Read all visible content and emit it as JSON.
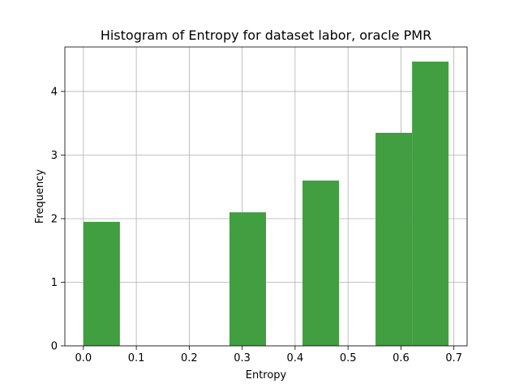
{
  "chart_data": {
    "type": "bar",
    "title": "Histogram of Entropy for dataset labor, oracle PMR",
    "xlabel": "Entropy",
    "ylabel": "Frequency",
    "xlim": [
      -0.035,
      0.725
    ],
    "ylim": [
      0,
      4.7
    ],
    "xticks": [
      0.0,
      0.1,
      0.2,
      0.3,
      0.4,
      0.5,
      0.6,
      0.7
    ],
    "xtick_labels": [
      "0.0",
      "0.1",
      "0.2",
      "0.3",
      "0.4",
      "0.5",
      "0.6",
      "0.7"
    ],
    "yticks": [
      0,
      1,
      2,
      3,
      4
    ],
    "ytick_labels": [
      "0",
      "1",
      "2",
      "3",
      "4"
    ],
    "grid": true,
    "bar_color": "#419e41",
    "bins": [
      {
        "x0": 0.0,
        "x1": 0.069,
        "value": 1.95
      },
      {
        "x0": 0.069,
        "x1": 0.138,
        "value": 0
      },
      {
        "x0": 0.138,
        "x1": 0.207,
        "value": 0
      },
      {
        "x0": 0.207,
        "x1": 0.276,
        "value": 0
      },
      {
        "x0": 0.276,
        "x1": 0.345,
        "value": 2.1
      },
      {
        "x0": 0.345,
        "x1": 0.414,
        "value": 0
      },
      {
        "x0": 0.414,
        "x1": 0.483,
        "value": 2.6
      },
      {
        "x0": 0.483,
        "x1": 0.552,
        "value": 0
      },
      {
        "x0": 0.552,
        "x1": 0.621,
        "value": 3.35
      },
      {
        "x0": 0.621,
        "x1": 0.69,
        "value": 4.47
      }
    ]
  }
}
